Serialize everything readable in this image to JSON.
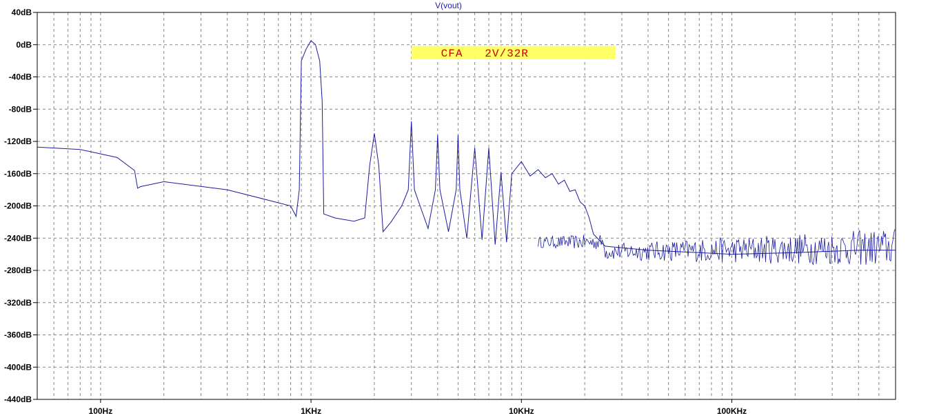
{
  "chart_data": {
    "type": "line",
    "title": "V(vout)",
    "xlabel": "",
    "ylabel": "",
    "x_scale": "log",
    "xlim": [
      50,
      600000
    ],
    "ylim": [
      -440,
      40
    ],
    "grid": true,
    "y_ticks": [
      {
        "value": 40,
        "label": "40dB"
      },
      {
        "value": 0,
        "label": "0dB"
      },
      {
        "value": -40,
        "label": "-40dB"
      },
      {
        "value": -80,
        "label": "-80dB"
      },
      {
        "value": -120,
        "label": "-120dB"
      },
      {
        "value": -160,
        "label": "-160dB"
      },
      {
        "value": -200,
        "label": "-200dB"
      },
      {
        "value": -240,
        "label": "-240dB"
      },
      {
        "value": -280,
        "label": "-280dB"
      },
      {
        "value": -320,
        "label": "-320dB"
      },
      {
        "value": -360,
        "label": "-360dB"
      },
      {
        "value": -400,
        "label": "-400dB"
      },
      {
        "value": -440,
        "label": "-440dB"
      }
    ],
    "x_ticks": [
      {
        "value": 100,
        "label": "100Hz"
      },
      {
        "value": 1000,
        "label": "1KHz"
      },
      {
        "value": 10000,
        "label": "10KHz"
      },
      {
        "value": 100000,
        "label": "100KHz"
      }
    ],
    "annotation": {
      "text": "CFA   2V/32R",
      "background": "#ffff66",
      "color": "#cc0000"
    },
    "series": [
      {
        "color": "#1a1aa0",
        "x": [
          50,
          80,
          120,
          145,
          150,
          155,
          200,
          400,
          800,
          850,
          880,
          900,
          950,
          1000,
          1050,
          1100,
          1130,
          1150,
          1300,
          1600,
          1800,
          1900,
          2000,
          2100,
          2200,
          2400,
          2700,
          2900,
          3000,
          3100,
          3300,
          3600,
          3900,
          4000,
          4100,
          4500,
          4900,
          5000,
          5100,
          5500,
          6000,
          6500,
          7000,
          7500,
          8000,
          8500,
          9000,
          10000,
          11000,
          12000,
          13000,
          14000,
          15000,
          16000,
          17000,
          18000,
          19000,
          20000,
          21000,
          22000,
          25000,
          40000,
          70000,
          100000,
          200000,
          400000,
          600000
        ],
        "values": [
          -127,
          -130,
          -140,
          -156,
          -178,
          -176,
          -170,
          -180,
          -200,
          -213,
          -180,
          -20,
          -5,
          5,
          0,
          -20,
          -70,
          -210,
          -215,
          -219,
          -215,
          -150,
          -110,
          -150,
          -232,
          -220,
          -200,
          -180,
          -95,
          -180,
          -200,
          -228,
          -180,
          -112,
          -180,
          -232,
          -180,
          -112,
          -180,
          -240,
          -128,
          -242,
          -128,
          -248,
          -158,
          -245,
          -160,
          -145,
          -163,
          -155,
          -165,
          -160,
          -173,
          -168,
          -182,
          -180,
          -195,
          -200,
          -215,
          -235,
          -250,
          -255,
          -258,
          -260,
          -258,
          -255,
          -255
        ]
      }
    ]
  }
}
